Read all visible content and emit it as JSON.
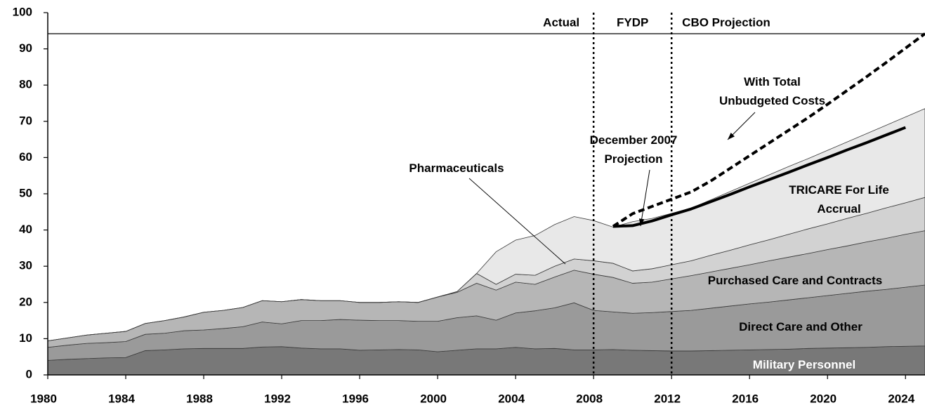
{
  "chart_data": {
    "type": "stacked_area",
    "x": [
      1980,
      1981,
      1982,
      1983,
      1984,
      1985,
      1986,
      1987,
      1988,
      1989,
      1990,
      1991,
      1992,
      1993,
      1994,
      1995,
      1996,
      1997,
      1998,
      1999,
      2000,
      2001,
      2002,
      2003,
      2004,
      2005,
      2006,
      2007,
      2008,
      2009,
      2010,
      2011,
      2012,
      2013,
      2014,
      2015,
      2016,
      2017,
      2018,
      2019,
      2020,
      2021,
      2022,
      2023,
      2024,
      2025
    ],
    "series": [
      {
        "name": "Military Personnel",
        "color": "#787878",
        "values": [
          4.0,
          4.3,
          4.5,
          4.7,
          4.8,
          6.7,
          6.9,
          7.2,
          7.3,
          7.3,
          7.3,
          7.7,
          7.8,
          7.4,
          7.2,
          7.2,
          6.8,
          6.9,
          7.0,
          6.9,
          6.4,
          6.8,
          7.2,
          7.2,
          7.6,
          7.2,
          7.3,
          6.9,
          6.9,
          7.0,
          6.8,
          6.7,
          6.6,
          6.6,
          6.7,
          6.8,
          6.9,
          7.0,
          7.1,
          7.3,
          7.4,
          7.5,
          7.6,
          7.8,
          7.9,
          8.0
        ]
      },
      {
        "name": "Direct Care and Other",
        "color": "#9a9a9a",
        "values": [
          3.6,
          3.9,
          4.2,
          4.2,
          4.4,
          4.5,
          4.6,
          5.0,
          5.1,
          5.5,
          6.0,
          6.9,
          6.3,
          7.6,
          7.8,
          8.1,
          8.3,
          8.1,
          8.0,
          7.9,
          8.4,
          9.0,
          9.1,
          7.9,
          9.5,
          10.5,
          11.2,
          13.0,
          10.9,
          10.4,
          10.2,
          10.5,
          10.9,
          11.2,
          11.7,
          12.2,
          12.7,
          13.1,
          13.6,
          14.0,
          14.5,
          15.0,
          15.5,
          15.8,
          16.3,
          16.8
        ]
      },
      {
        "name": "Purchased Care and Contracts",
        "color": "#b6b6b6",
        "values": [
          1.8,
          2.0,
          2.3,
          2.6,
          2.8,
          3.0,
          3.5,
          3.8,
          4.9,
          5.0,
          5.3,
          5.9,
          6.1,
          5.8,
          5.5,
          5.2,
          4.9,
          5.0,
          5.2,
          5.2,
          6.7,
          7.0,
          9.0,
          8.3,
          8.5,
          7.3,
          8.5,
          9.0,
          10.0,
          9.5,
          8.3,
          8.4,
          9.0,
          9.6,
          10.0,
          10.4,
          10.8,
          11.4,
          11.8,
          12.2,
          12.7,
          13.1,
          13.6,
          14.1,
          14.6,
          15.0
        ]
      },
      {
        "name": "Pharmaceuticals",
        "color": "#d2d2d2",
        "values": [
          0,
          0,
          0,
          0,
          0,
          0,
          0,
          0,
          0,
          0,
          0,
          0,
          0,
          0,
          0,
          0,
          0,
          0,
          0,
          0,
          0,
          0.2,
          2.7,
          1.6,
          2.2,
          2.5,
          3.0,
          3.1,
          3.7,
          3.9,
          3.4,
          3.7,
          3.9,
          4.1,
          4.6,
          5.0,
          5.5,
          5.8,
          6.3,
          6.8,
          7.1,
          7.6,
          7.9,
          8.4,
          8.7,
          9.2
        ]
      },
      {
        "name": "TRICARE For Life Accrual",
        "color": "#e8e8e8",
        "values": [
          0,
          0,
          0,
          0,
          0,
          0,
          0,
          0,
          0,
          0,
          0,
          0,
          0,
          0,
          0,
          0,
          0,
          0,
          0,
          0,
          0,
          0,
          0,
          9.0,
          9.4,
          11.0,
          11.5,
          11.7,
          11.1,
          10.0,
          13.6,
          13.9,
          14.2,
          14.5,
          15.3,
          16.2,
          17.0,
          17.9,
          18.7,
          19.4,
          20.3,
          21.1,
          22.0,
          22.8,
          23.7,
          24.5
        ]
      }
    ],
    "lines": [
      {
        "name": "December 2007 Projection",
        "color": "#000000",
        "dashed": false,
        "values": [
          null,
          null,
          null,
          null,
          null,
          null,
          null,
          null,
          null,
          null,
          null,
          null,
          null,
          null,
          null,
          null,
          null,
          null,
          null,
          null,
          null,
          null,
          null,
          null,
          null,
          null,
          null,
          null,
          null,
          41.0,
          41.2,
          42.5,
          44.2,
          45.8,
          47.8,
          49.8,
          51.9,
          53.9,
          55.9,
          58.0,
          60.0,
          62.1,
          64.1,
          66.2,
          68.3,
          null
        ]
      },
      {
        "name": "With Total Unbudgeted Costs",
        "color": "#000000",
        "dashed": true,
        "values": [
          null,
          null,
          null,
          null,
          null,
          null,
          null,
          null,
          null,
          null,
          null,
          null,
          null,
          null,
          null,
          null,
          null,
          null,
          null,
          null,
          null,
          null,
          null,
          null,
          null,
          null,
          null,
          null,
          null,
          41.0,
          44.5,
          46.5,
          48.5,
          50.5,
          53.5,
          57.0,
          60.5,
          64.0,
          67.5,
          71.0,
          74.7,
          78.5,
          82.3,
          86.2,
          90.2,
          94.2
        ]
      }
    ],
    "periods": [
      "Actual",
      "FYDP",
      "CBO Projection"
    ],
    "dividers": [
      2008,
      2012
    ],
    "xlim": [
      1980,
      2025
    ],
    "xticks": [
      1980,
      1984,
      1988,
      1992,
      1996,
      2000,
      2004,
      2008,
      2012,
      2016,
      2020,
      2024
    ],
    "ylim": [
      0,
      100
    ],
    "yticks": [
      0,
      10,
      20,
      30,
      40,
      50,
      60,
      70,
      80,
      90,
      100
    ]
  }
}
